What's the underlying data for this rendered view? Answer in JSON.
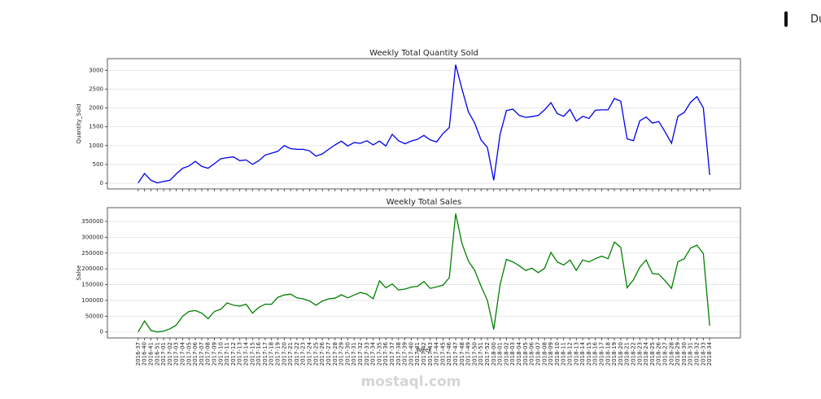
{
  "side_text": "Du",
  "watermark": "mostaql.com",
  "chart_data": [
    {
      "type": "line",
      "title": "Weekly Total Quantity Sold",
      "ylabel": "Quantity_Sold",
      "series": [
        {
          "name": "Quantity_Sold",
          "color": "#0000ee",
          "values": [
            10,
            260,
            80,
            10,
            50,
            80,
            250,
            400,
            460,
            580,
            450,
            400,
            520,
            650,
            680,
            700,
            600,
            620,
            500,
            600,
            750,
            800,
            850,
            1000,
            920,
            900,
            900,
            860,
            720,
            780,
            900,
            1020,
            1120,
            990,
            1080,
            1060,
            1130,
            1020,
            1120,
            990,
            1300,
            1130,
            1050,
            1120,
            1170,
            1270,
            1150,
            1100,
            1320,
            1480,
            3150,
            2500,
            1900,
            1600,
            1150,
            950,
            80,
            1300,
            1930,
            1970,
            1800,
            1750,
            1770,
            1800,
            1950,
            2140,
            1850,
            1780,
            1960,
            1650,
            1780,
            1720,
            1940,
            1950,
            1950,
            2250,
            2180,
            1180,
            1130,
            1660,
            1760,
            1600,
            1640,
            1360,
            1060,
            1780,
            1880,
            2150,
            2300,
            2000,
            220
          ]
        }
      ],
      "ylim": [
        -150,
        3310
      ],
      "yticks": [
        0,
        500,
        1000,
        1500,
        2000,
        2500,
        3000
      ],
      "grid": true
    },
    {
      "type": "line",
      "title": "Weekly Total Sales",
      "ylabel": "Salse",
      "xlabel": "Week",
      "categories": [
        "2016-37",
        "2016-40",
        "2016-41",
        "2016-51",
        "2017-01",
        "2017-02",
        "2017-03",
        "2017-04",
        "2017-05",
        "2017-06",
        "2017-07",
        "2017-08",
        "2017-09",
        "2017-10",
        "2017-11",
        "2017-12",
        "2017-13",
        "2017-14",
        "2017-15",
        "2017-16",
        "2017-17",
        "2017-18",
        "2017-19",
        "2017-20",
        "2017-21",
        "2017-22",
        "2017-23",
        "2017-24",
        "2017-25",
        "2017-26",
        "2017-27",
        "2017-28",
        "2017-29",
        "2017-30",
        "2017-31",
        "2017-32",
        "2017-33",
        "2017-34",
        "2017-35",
        "2017-36",
        "2017-37",
        "2017-38",
        "2017-39",
        "2017-40",
        "2017-41",
        "2017-42",
        "2017-43",
        "2017-44",
        "2017-45",
        "2017-46",
        "2017-47",
        "2017-48",
        "2017-49",
        "2017-50",
        "2017-51",
        "2017-52",
        "2018-00",
        "2018-01",
        "2018-02",
        "2018-03",
        "2018-04",
        "2018-05",
        "2018-06",
        "2018-07",
        "2018-08",
        "2018-09",
        "2018-10",
        "2018-11",
        "2018-12",
        "2018-13",
        "2018-14",
        "2018-15",
        "2018-16",
        "2018-17",
        "2018-18",
        "2018-19",
        "2018-20",
        "2018-21",
        "2018-22",
        "2018-23",
        "2018-24",
        "2018-25",
        "2018-26",
        "2018-27",
        "2018-28",
        "2018-29",
        "2018-30",
        "2018-31",
        "2018-32",
        "2018-33",
        "2018-34"
      ],
      "series": [
        {
          "name": "Salse",
          "color": "#008000",
          "values": [
            0,
            35000,
            5000,
            0,
            3000,
            10000,
            22000,
            50000,
            65000,
            68000,
            60000,
            42000,
            65000,
            72000,
            92000,
            85000,
            82000,
            88000,
            60000,
            78000,
            88000,
            88000,
            110000,
            117000,
            120000,
            108000,
            105000,
            98000,
            85000,
            98000,
            105000,
            107000,
            118000,
            108000,
            117000,
            125000,
            120000,
            105000,
            162000,
            140000,
            152000,
            133000,
            136000,
            142000,
            145000,
            160000,
            138000,
            143000,
            148000,
            172000,
            375000,
            280000,
            225000,
            195000,
            145000,
            100000,
            8000,
            150000,
            230000,
            222000,
            210000,
            195000,
            202000,
            188000,
            202000,
            252000,
            222000,
            212000,
            228000,
            195000,
            228000,
            222000,
            232000,
            240000,
            232000,
            285000,
            268000,
            140000,
            165000,
            205000,
            228000,
            185000,
            183000,
            162000,
            138000,
            222000,
            232000,
            266000,
            275000,
            248000,
            20000
          ]
        }
      ],
      "ylim": [
        -18750,
        393750
      ],
      "yticks": [
        0,
        50000,
        100000,
        150000,
        200000,
        250000,
        300000,
        350000
      ],
      "grid": true
    }
  ]
}
